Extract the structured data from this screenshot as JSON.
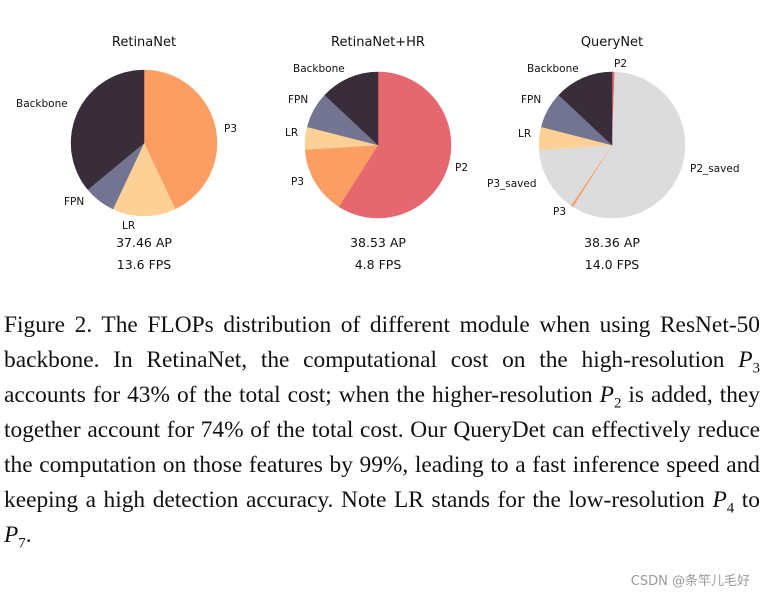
{
  "chart_data": [
    {
      "type": "pie",
      "title": "RetinaNet",
      "slices": [
        {
          "label": "P3",
          "value": 43,
          "color": "#fb9e63"
        },
        {
          "label": "LR",
          "value": 14,
          "color": "#fdd196"
        },
        {
          "label": "FPN",
          "value": 7,
          "color": "#727492"
        },
        {
          "label": "Backbone",
          "value": 36,
          "color": "#3a2d3a"
        }
      ],
      "ap": "37.46 AP",
      "fps": "13.6 FPS"
    },
    {
      "type": "pie",
      "title": "RetinaNet+HR",
      "slices": [
        {
          "label": "P2",
          "value": 59,
          "color": "#e56770"
        },
        {
          "label": "P3",
          "value": 15,
          "color": "#fb9e63"
        },
        {
          "label": "LR",
          "value": 5,
          "color": "#fdd196"
        },
        {
          "label": "FPN",
          "value": 8,
          "color": "#727492"
        },
        {
          "label": "Backbone",
          "value": 13,
          "color": "#3a2d3a"
        }
      ],
      "ap": "38.53 AP",
      "fps": "4.8 FPS"
    },
    {
      "type": "pie",
      "title": "QueryNet",
      "slices": [
        {
          "label": "P2",
          "value": 0.6,
          "color": "#e56770"
        },
        {
          "label": "P2_saved",
          "value": 58.4,
          "color": "#dcdcdc"
        },
        {
          "label": "P3",
          "value": 0.5,
          "color": "#fb9e63"
        },
        {
          "label": "P3_saved",
          "value": 14.5,
          "color": "#dcdcdc"
        },
        {
          "label": "LR",
          "value": 5,
          "color": "#fdd196"
        },
        {
          "label": "FPN",
          "value": 8,
          "color": "#727492"
        },
        {
          "label": "Backbone",
          "value": 13,
          "color": "#3a2d3a"
        }
      ],
      "ap": "38.36 AP",
      "fps": "14.0 FPS"
    }
  ],
  "caption": {
    "t1": "Figure 2. The FLOPs distribution of different module when using ResNet-50 backbone. In RetinaNet, the computational cost on the high-resolution ",
    "p3_var": "P",
    "p3_sub": "3",
    "t2": " accounts for 43% of the total cost; when the higher-resolution ",
    "p2_var": "P",
    "p2_sub": "2",
    "t3": " is added, they together account for 74% of the total cost. Our QueryDet can effectively reduce the computation on those features by 99%, leading to a fast inference speed and keeping a high detection accuracy.  Note LR stands for the low-resolution ",
    "p4_var": "P",
    "p4_sub": "4",
    "t4": " to ",
    "p7_var": "P",
    "p7_sub": "7",
    "t5": "."
  },
  "watermark": "CSDN @条竿儿毛好"
}
